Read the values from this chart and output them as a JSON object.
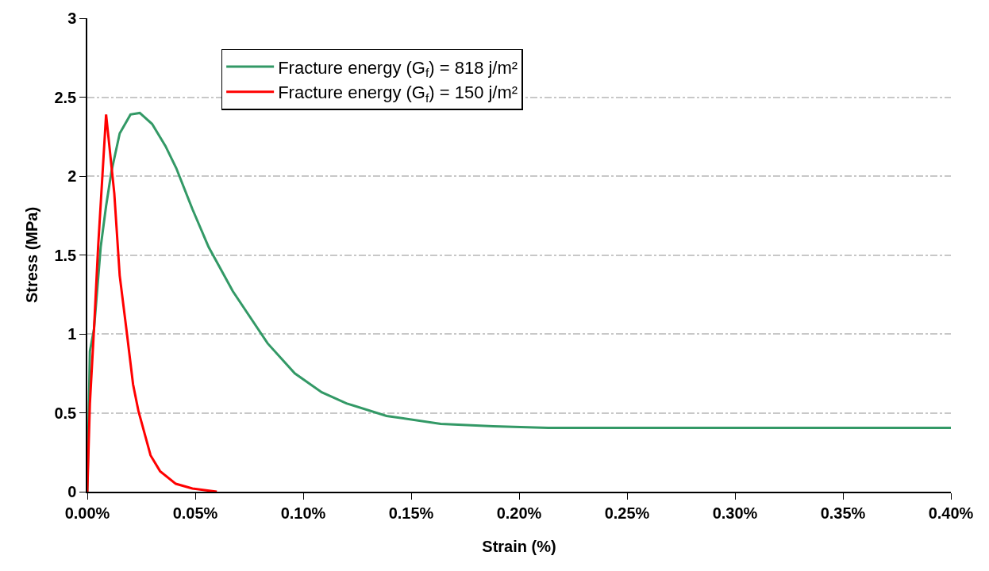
{
  "chart_data": {
    "type": "line",
    "xlabel": "Strain (%)",
    "ylabel": "Stress (MPa)",
    "xlim": [
      0,
      0.4
    ],
    "xticks": [
      {
        "value": 0,
        "label": "0.00%"
      },
      {
        "value": 0.05,
        "label": "0.05%"
      },
      {
        "value": 0.1,
        "label": "0.10%"
      },
      {
        "value": 0.15,
        "label": "0.15%"
      },
      {
        "value": 0.2,
        "label": "0.20%"
      },
      {
        "value": 0.25,
        "label": "0.25%"
      },
      {
        "value": 0.3,
        "label": "0.30%"
      },
      {
        "value": 0.35,
        "label": "0.35%"
      },
      {
        "value": 0.4,
        "label": "0.40%"
      }
    ],
    "ylim": [
      0,
      3
    ],
    "yticks": [
      0,
      0.5,
      1,
      1.5,
      2,
      2.5,
      3
    ],
    "grid": "y",
    "legend": "top",
    "marker": "none",
    "line_style": "solid",
    "series": [
      {
        "name": "Fracture energy (G$_{f}$) = 818 j/m²",
        "color": "#339966",
        "x": [
          0,
          0.0012,
          0.0031,
          0.0062,
          0.0087,
          0.0112,
          0.015,
          0.02,
          0.0243,
          0.03,
          0.0362,
          0.0412,
          0.0487,
          0.0562,
          0.0674,
          0.0835,
          0.0961,
          0.1086,
          0.1135,
          0.12,
          0.1386,
          0.1637,
          0.188,
          0.2135,
          0.3,
          0.4
        ],
        "values": [
          0,
          0.89,
          1.03,
          1.55,
          1.81,
          2.03,
          2.27,
          2.39,
          2.4,
          2.33,
          2.19,
          2.05,
          1.79,
          1.55,
          1.27,
          0.94,
          0.75,
          0.63,
          0.6,
          0.56,
          0.48,
          0.43,
          0.415,
          0.405,
          0.405,
          0.405
        ]
      },
      {
        "name": "Fracture energy (G$_{f}$) = 150 j/m²",
        "color": "#ff0000",
        "x": [
          0,
          0.0012,
          0.0031,
          0.005,
          0.0065,
          0.0087,
          0.0125,
          0.015,
          0.0181,
          0.0212,
          0.0237,
          0.0293,
          0.0337,
          0.041,
          0.0487,
          0.06
        ],
        "values": [
          0,
          0.56,
          1.03,
          1.55,
          1.89,
          2.39,
          1.89,
          1.37,
          1.03,
          0.68,
          0.51,
          0.23,
          0.13,
          0.05,
          0.02,
          0
        ]
      }
    ]
  }
}
